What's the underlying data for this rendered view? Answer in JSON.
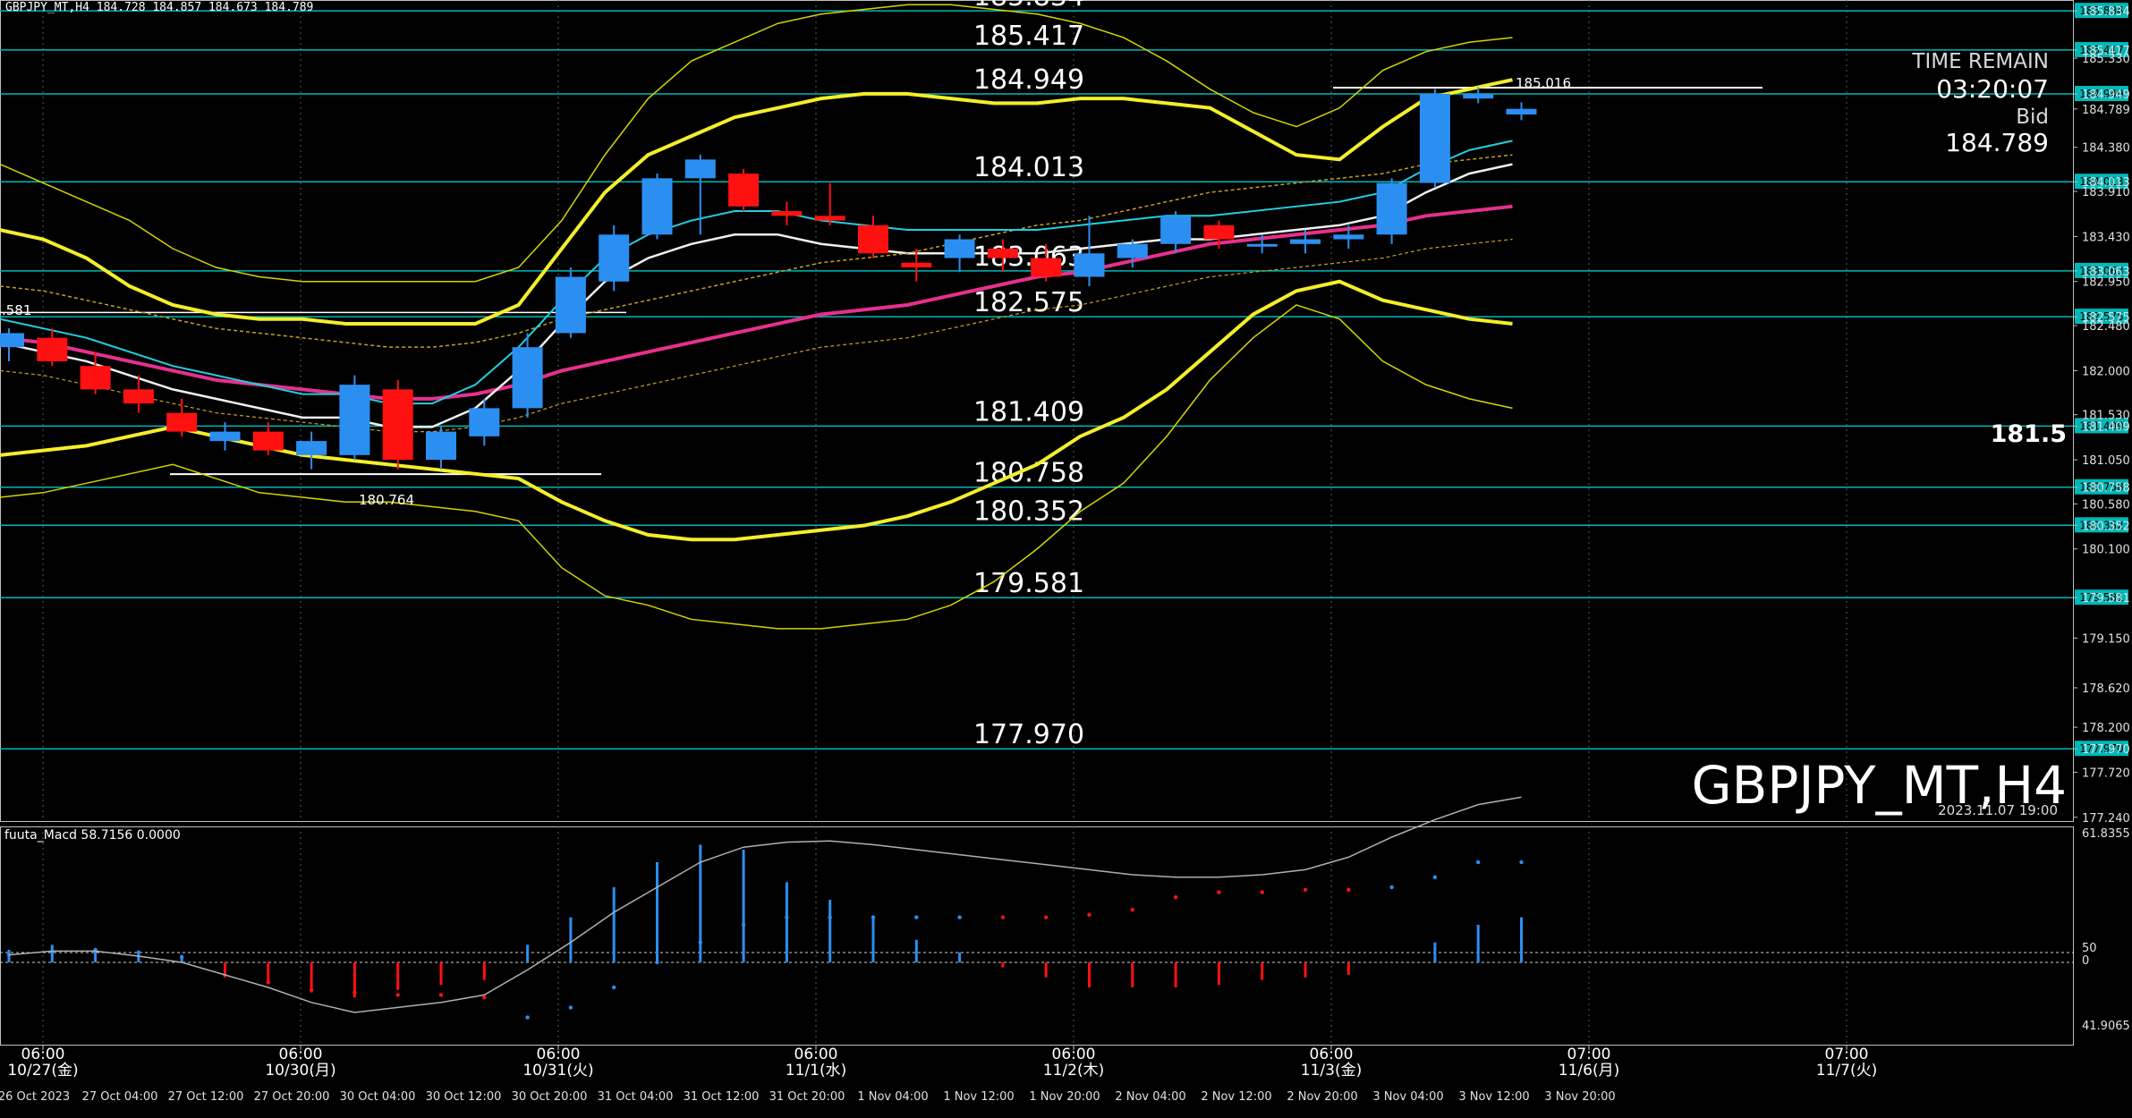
{
  "header": {
    "symbol_info": "GBPJPY_MT,H4  184.728 184.857 184.673 184.789"
  },
  "watermark": {
    "symbol": "GBPJPY_MT,H4",
    "datetime": "2023.11.07 19:00"
  },
  "time_remain": {
    "label": "TIME REMAIN",
    "value": "03:20:07",
    "bid_label": "Bid",
    "bid_value": "184.789"
  },
  "current_price_marker": "181.5",
  "colors": {
    "bull": "#2b8ff2",
    "bear": "#ff1111",
    "level_line": "#00b8b8",
    "bollinger_outer": "#d4d400",
    "bollinger_main": "#f4ee2a",
    "ma_pink": "#e6308e",
    "ma_white": "#f0f0f0",
    "ma_orange": "#c8a020",
    "cyan_ma": "#20d0e0"
  },
  "chart_data": [
    {
      "type": "candlestick",
      "title": "GBPJPY_MT,H4",
      "ylim": [
        177.2,
        185.95
      ],
      "levels": [
        {
          "value": 185.834,
          "label": "185.834"
        },
        {
          "value": 185.417,
          "label": "185.417"
        },
        {
          "value": 184.949,
          "label": "184.949"
        },
        {
          "value": 184.013,
          "label": "184.013"
        },
        {
          "value": 183.063,
          "label": "183.063"
        },
        {
          "value": 182.575,
          "label": "182.575"
        },
        {
          "value": 181.409,
          "label": "181.409"
        },
        {
          "value": 180.758,
          "label": "180.758"
        },
        {
          "value": 180.352,
          "label": "180.352"
        },
        {
          "value": 179.581,
          "label": "179.581"
        },
        {
          "value": 177.97,
          "label": "177.970"
        }
      ],
      "y_ticks": [
        "185.834",
        "185.417",
        "185.330",
        "184.949",
        "184.789",
        "184.380",
        "184.013",
        "183.910",
        "183.430",
        "183.063",
        "182.950",
        "182.575",
        "182.480",
        "182.000",
        "181.530",
        "181.409",
        "181.050",
        "180.758",
        "180.580",
        "180.352",
        "180.100",
        "179.581",
        "179.150",
        "178.620",
        "178.200",
        "177.970",
        "177.720",
        "177.240"
      ],
      "candles": [
        {
          "o": 182.25,
          "h": 182.45,
          "l": 182.1,
          "c": 182.4
        },
        {
          "o": 182.35,
          "h": 182.45,
          "l": 182.05,
          "c": 182.1
        },
        {
          "o": 182.05,
          "h": 182.2,
          "l": 181.75,
          "c": 181.8
        },
        {
          "o": 181.8,
          "h": 181.95,
          "l": 181.55,
          "c": 181.65
        },
        {
          "o": 181.55,
          "h": 181.7,
          "l": 181.3,
          "c": 181.35
        },
        {
          "o": 181.25,
          "h": 181.45,
          "l": 181.15,
          "c": 181.35
        },
        {
          "o": 181.35,
          "h": 181.45,
          "l": 181.1,
          "c": 181.15
        },
        {
          "o": 181.1,
          "h": 181.35,
          "l": 180.95,
          "c": 181.25
        },
        {
          "o": 181.1,
          "h": 181.95,
          "l": 181.05,
          "c": 181.85
        },
        {
          "o": 181.8,
          "h": 181.9,
          "l": 180.95,
          "c": 181.05
        },
        {
          "o": 181.05,
          "h": 181.4,
          "l": 180.95,
          "c": 181.35
        },
        {
          "o": 181.3,
          "h": 181.7,
          "l": 181.2,
          "c": 181.6
        },
        {
          "o": 181.6,
          "h": 182.4,
          "l": 181.5,
          "c": 182.25
        },
        {
          "o": 182.4,
          "h": 183.1,
          "l": 182.35,
          "c": 183.0
        },
        {
          "o": 182.95,
          "h": 183.55,
          "l": 182.85,
          "c": 183.45
        },
        {
          "o": 183.45,
          "h": 184.1,
          "l": 183.4,
          "c": 184.05
        },
        {
          "o": 184.05,
          "h": 184.3,
          "l": 183.45,
          "c": 184.25
        },
        {
          "o": 184.1,
          "h": 184.15,
          "l": 183.7,
          "c": 183.75
        },
        {
          "o": 183.7,
          "h": 183.8,
          "l": 183.55,
          "c": 183.65
        },
        {
          "o": 183.65,
          "h": 184.0,
          "l": 183.55,
          "c": 183.6
        },
        {
          "o": 183.55,
          "h": 183.65,
          "l": 183.2,
          "c": 183.25
        },
        {
          "o": 183.15,
          "h": 183.3,
          "l": 182.95,
          "c": 183.1
        },
        {
          "o": 183.2,
          "h": 183.45,
          "l": 183.05,
          "c": 183.4
        },
        {
          "o": 183.3,
          "h": 183.4,
          "l": 183.05,
          "c": 183.2
        },
        {
          "o": 183.2,
          "h": 183.35,
          "l": 182.95,
          "c": 183.0
        },
        {
          "o": 183.0,
          "h": 183.65,
          "l": 182.9,
          "c": 183.25
        },
        {
          "o": 183.2,
          "h": 183.4,
          "l": 183.1,
          "c": 183.35
        },
        {
          "o": 183.35,
          "h": 183.7,
          "l": 183.25,
          "c": 183.65
        },
        {
          "o": 183.55,
          "h": 183.6,
          "l": 183.3,
          "c": 183.4
        },
        {
          "o": 183.35,
          "h": 183.45,
          "l": 183.25,
          "c": 183.35
        },
        {
          "o": 183.35,
          "h": 183.5,
          "l": 183.25,
          "c": 183.4
        },
        {
          "o": 183.4,
          "h": 183.55,
          "l": 183.3,
          "c": 183.45
        },
        {
          "o": 183.45,
          "h": 184.05,
          "l": 183.35,
          "c": 184.0
        },
        {
          "o": 184.0,
          "h": 185.0,
          "l": 183.95,
          "c": 184.95
        },
        {
          "o": 184.9,
          "h": 185.02,
          "l": 184.85,
          "c": 184.95
        },
        {
          "o": 184.73,
          "h": 184.86,
          "l": 184.67,
          "c": 184.79
        }
      ],
      "bollinger_upper_outer": [
        184.2,
        184.0,
        183.8,
        183.6,
        183.3,
        183.1,
        183.0,
        182.95,
        182.95,
        182.95,
        182.95,
        182.95,
        183.1,
        183.6,
        184.3,
        184.9,
        185.3,
        185.5,
        185.7,
        185.8,
        185.85,
        185.9,
        185.9,
        185.85,
        185.8,
        185.7,
        185.55,
        185.3,
        185.0,
        184.75,
        184.6,
        184.8,
        185.2,
        185.4,
        185.5,
        185.55
      ],
      "bollinger_upper": [
        183.5,
        183.4,
        183.2,
        182.9,
        182.7,
        182.6,
        182.55,
        182.55,
        182.5,
        182.5,
        182.5,
        182.5,
        182.7,
        183.3,
        183.9,
        184.3,
        184.5,
        184.7,
        184.8,
        184.9,
        184.95,
        184.95,
        184.9,
        184.85,
        184.85,
        184.9,
        184.9,
        184.85,
        184.8,
        184.55,
        184.3,
        184.25,
        184.6,
        184.9,
        185.0,
        185.1
      ],
      "bollinger_lower": [
        181.1,
        181.15,
        181.2,
        181.3,
        181.4,
        181.3,
        181.2,
        181.1,
        181.05,
        181.0,
        180.95,
        180.9,
        180.85,
        180.6,
        180.4,
        180.25,
        180.2,
        180.2,
        180.25,
        180.3,
        180.35,
        180.45,
        180.6,
        180.8,
        181.0,
        181.3,
        181.5,
        181.8,
        182.2,
        182.6,
        182.85,
        182.95,
        182.75,
        182.65,
        182.55,
        182.5
      ],
      "bollinger_lower_outer": [
        180.65,
        180.7,
        180.8,
        180.9,
        181.0,
        180.85,
        180.7,
        180.65,
        180.6,
        180.6,
        180.55,
        180.5,
        180.4,
        179.9,
        179.6,
        179.5,
        179.35,
        179.3,
        179.25,
        179.25,
        179.3,
        179.35,
        179.5,
        179.75,
        180.1,
        180.5,
        180.8,
        181.3,
        181.9,
        182.35,
        182.7,
        182.55,
        182.1,
        181.85,
        181.7,
        181.6
      ],
      "ma_pink": [
        182.35,
        182.3,
        182.2,
        182.1,
        182.0,
        181.9,
        181.85,
        181.8,
        181.75,
        181.7,
        181.7,
        181.75,
        181.85,
        182.0,
        182.1,
        182.2,
        182.3,
        182.4,
        182.5,
        182.6,
        182.65,
        182.7,
        182.8,
        182.9,
        183.0,
        183.05,
        183.15,
        183.25,
        183.35,
        183.4,
        183.45,
        183.5,
        183.55,
        183.65,
        183.7,
        183.75
      ],
      "ma_white": [
        182.3,
        182.2,
        182.1,
        181.95,
        181.8,
        181.7,
        181.6,
        181.5,
        181.5,
        181.4,
        181.4,
        181.6,
        182.0,
        182.5,
        182.95,
        183.2,
        183.35,
        183.45,
        183.45,
        183.35,
        183.3,
        183.25,
        183.25,
        183.25,
        183.25,
        183.3,
        183.35,
        183.4,
        183.4,
        183.45,
        183.5,
        183.55,
        183.65,
        183.9,
        184.1,
        184.2
      ],
      "macd": {
        "name": "fuuta_Macd 58.7156  0.0000",
        "ylim": [
          41.9065,
          61.8355
        ],
        "ticks": [
          "61.8355",
          "50",
          "0",
          "41.9065"
        ],
        "hist": [
          0.5,
          0.7,
          0.5,
          0.4,
          0.3,
          -0.6,
          -0.8,
          -1.2,
          -1.4,
          -1.1,
          -0.9,
          -0.7,
          0.7,
          1.8,
          3.0,
          4.0,
          4.7,
          4.5,
          3.2,
          2.5,
          1.8,
          0.9,
          0.4,
          -0.2,
          -0.6,
          -1.0,
          -1.0,
          -1.0,
          -0.9,
          -0.7,
          -0.6,
          -0.5,
          0,
          0.8,
          1.5,
          1.8
        ],
        "signal_dots": [
          0.3,
          0.4,
          0.5,
          0.4,
          0.2,
          -0.5,
          -0.8,
          -1.1,
          -1.2,
          -1.3,
          -1.3,
          -1.4,
          -2.2,
          -1.8,
          -1.0,
          0.0,
          0.8,
          1.5,
          1.8,
          1.8,
          1.8,
          1.8,
          1.8,
          1.8,
          1.8,
          1.9,
          2.1,
          2.6,
          2.8,
          2.8,
          2.9,
          2.9,
          3.0,
          3.4,
          4.0,
          4.0
        ],
        "signal_line": [
          0.3,
          0.45,
          0.45,
          0.25,
          0.0,
          -0.5,
          -1.0,
          -1.6,
          -2.0,
          -1.8,
          -1.6,
          -1.3,
          -0.3,
          0.8,
          2.0,
          3.0,
          4.0,
          4.6,
          4.8,
          4.85,
          4.7,
          4.5,
          4.3,
          4.1,
          3.9,
          3.7,
          3.5,
          3.4,
          3.4,
          3.5,
          3.7,
          4.2,
          5.0,
          5.7,
          6.3,
          6.6
        ]
      }
    }
  ],
  "time_axis": {
    "major": [
      {
        "label": "06:00",
        "sub": "10/27(金)"
      },
      {
        "label": "06:00",
        "sub": "10/30(月)"
      },
      {
        "label": "06:00",
        "sub": "10/31(火)"
      },
      {
        "label": "06:00",
        "sub": "11/1(水)"
      },
      {
        "label": "06:00",
        "sub": "11/2(木)"
      },
      {
        "label": "06:00",
        "sub": "11/3(金)"
      },
      {
        "label": "07:00",
        "sub": "11/6(月)"
      },
      {
        "label": "07:00",
        "sub": "11/7(火)"
      }
    ],
    "minor": [
      "26 Oct 2023",
      "27 Oct 04:00",
      "27 Oct 12:00",
      "27 Oct 20:00",
      "30 Oct 04:00",
      "30 Oct 12:00",
      "30 Oct 20:00",
      "31 Oct 04:00",
      "31 Oct 12:00",
      "31 Oct 20:00",
      "1 Nov 04:00",
      "1 Nov 12:00",
      "1 Nov 20:00",
      "2 Nov 04:00",
      "2 Nov 12:00",
      "2 Nov 20:00",
      "3 Nov 04:00",
      "3 Nov 12:00",
      "3 Nov 20:00"
    ]
  },
  "annotations": {
    "high_label": "185.016",
    "low_label": "180.764",
    "left_edge_label": ".581"
  }
}
